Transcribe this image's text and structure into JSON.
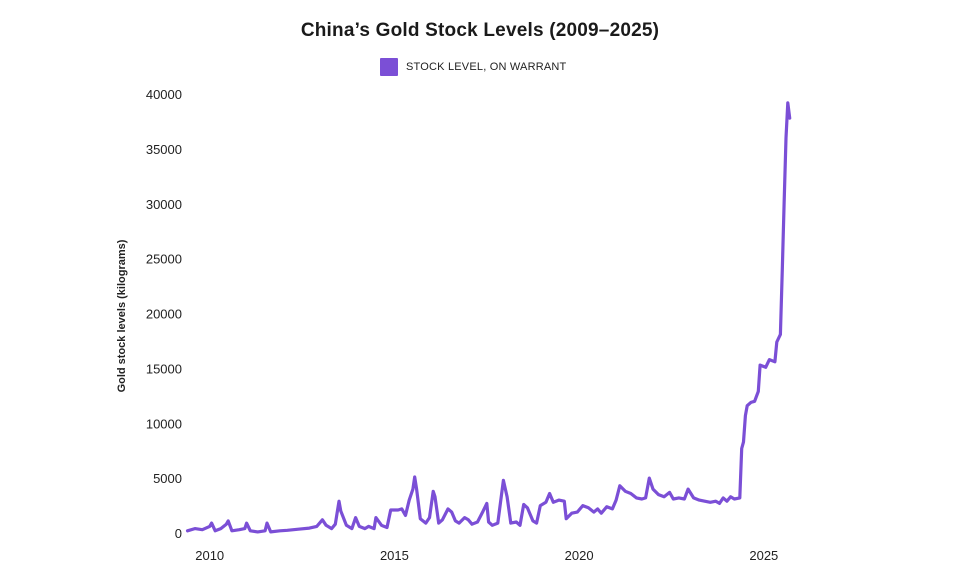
{
  "chart_data": {
    "type": "line",
    "title": "China’s Gold Stock Levels (2009–2025)",
    "xlabel": "",
    "ylabel": "Gold stock levels (kilograms)",
    "xlim": [
      2009.25,
      2026.25
    ],
    "ylim": [
      0,
      40000
    ],
    "x_ticks": [
      2010,
      2015,
      2020,
      2025
    ],
    "y_ticks": [
      0,
      5000,
      10000,
      15000,
      20000,
      25000,
      30000,
      35000,
      40000
    ],
    "grid": false,
    "legend_position": "top-center",
    "series": [
      {
        "name": "STOCK LEVEL, ON WARRANT",
        "color": "#7b4fd6",
        "points": [
          [
            2009.4,
            200
          ],
          [
            2009.6,
            400
          ],
          [
            2009.8,
            300
          ],
          [
            2010.0,
            600
          ],
          [
            2010.05,
            900
          ],
          [
            2010.15,
            200
          ],
          [
            2010.3,
            400
          ],
          [
            2010.45,
            800
          ],
          [
            2010.5,
            1100
          ],
          [
            2010.6,
            200
          ],
          [
            2010.8,
            300
          ],
          [
            2010.95,
            400
          ],
          [
            2011.0,
            900
          ],
          [
            2011.1,
            200
          ],
          [
            2011.3,
            100
          ],
          [
            2011.5,
            200
          ],
          [
            2011.55,
            900
          ],
          [
            2011.65,
            100
          ],
          [
            2011.9,
            200
          ],
          [
            2012.1,
            250
          ],
          [
            2012.4,
            350
          ],
          [
            2012.7,
            450
          ],
          [
            2012.9,
            600
          ],
          [
            2013.05,
            1200
          ],
          [
            2013.15,
            700
          ],
          [
            2013.3,
            400
          ],
          [
            2013.4,
            800
          ],
          [
            2013.5,
            2900
          ],
          [
            2013.55,
            2000
          ],
          [
            2013.7,
            700
          ],
          [
            2013.85,
            400
          ],
          [
            2013.95,
            1400
          ],
          [
            2014.05,
            600
          ],
          [
            2014.2,
            400
          ],
          [
            2014.3,
            600
          ],
          [
            2014.45,
            400
          ],
          [
            2014.5,
            1400
          ],
          [
            2014.65,
            700
          ],
          [
            2014.8,
            500
          ],
          [
            2014.9,
            2100
          ],
          [
            2015.1,
            2100
          ],
          [
            2015.2,
            2200
          ],
          [
            2015.3,
            1600
          ],
          [
            2015.4,
            3000
          ],
          [
            2015.5,
            4000
          ],
          [
            2015.55,
            5100
          ],
          [
            2015.6,
            4000
          ],
          [
            2015.7,
            1300
          ],
          [
            2015.85,
            900
          ],
          [
            2015.95,
            1400
          ],
          [
            2016.05,
            3800
          ],
          [
            2016.1,
            3300
          ],
          [
            2016.2,
            900
          ],
          [
            2016.3,
            1200
          ],
          [
            2016.45,
            2200
          ],
          [
            2016.55,
            1900
          ],
          [
            2016.65,
            1100
          ],
          [
            2016.75,
            900
          ],
          [
            2016.9,
            1400
          ],
          [
            2017.0,
            1200
          ],
          [
            2017.1,
            800
          ],
          [
            2017.25,
            1000
          ],
          [
            2017.4,
            2000
          ],
          [
            2017.5,
            2700
          ],
          [
            2017.55,
            1000
          ],
          [
            2017.65,
            700
          ],
          [
            2017.8,
            900
          ],
          [
            2017.95,
            4800
          ],
          [
            2018.05,
            3300
          ],
          [
            2018.15,
            900
          ],
          [
            2018.3,
            1000
          ],
          [
            2018.4,
            700
          ],
          [
            2018.5,
            2600
          ],
          [
            2018.6,
            2300
          ],
          [
            2018.75,
            1100
          ],
          [
            2018.85,
            900
          ],
          [
            2018.95,
            2500
          ],
          [
            2019.1,
            2800
          ],
          [
            2019.2,
            3600
          ],
          [
            2019.3,
            2800
          ],
          [
            2019.45,
            3000
          ],
          [
            2019.6,
            2900
          ],
          [
            2019.65,
            1300
          ],
          [
            2019.8,
            1800
          ],
          [
            2019.95,
            1900
          ],
          [
            2020.1,
            2500
          ],
          [
            2020.25,
            2300
          ],
          [
            2020.4,
            1900
          ],
          [
            2020.5,
            2200
          ],
          [
            2020.6,
            1800
          ],
          [
            2020.75,
            2400
          ],
          [
            2020.9,
            2200
          ],
          [
            2021.0,
            3000
          ],
          [
            2021.1,
            4300
          ],
          [
            2021.25,
            3800
          ],
          [
            2021.4,
            3600
          ],
          [
            2021.55,
            3200
          ],
          [
            2021.7,
            3100
          ],
          [
            2021.8,
            3200
          ],
          [
            2021.9,
            5000
          ],
          [
            2022.0,
            4000
          ],
          [
            2022.15,
            3500
          ],
          [
            2022.3,
            3300
          ],
          [
            2022.45,
            3700
          ],
          [
            2022.55,
            3100
          ],
          [
            2022.7,
            3200
          ],
          [
            2022.85,
            3100
          ],
          [
            2022.95,
            4000
          ],
          [
            2023.1,
            3200
          ],
          [
            2023.25,
            3000
          ],
          [
            2023.4,
            2900
          ],
          [
            2023.55,
            2800
          ],
          [
            2023.7,
            2900
          ],
          [
            2023.8,
            2700
          ],
          [
            2023.9,
            3200
          ],
          [
            2024.0,
            2900
          ],
          [
            2024.1,
            3300
          ],
          [
            2024.2,
            3100
          ],
          [
            2024.35,
            3200
          ],
          [
            2024.4,
            7700
          ],
          [
            2024.45,
            8300
          ],
          [
            2024.5,
            10700
          ],
          [
            2024.55,
            11600
          ],
          [
            2024.65,
            11900
          ],
          [
            2024.75,
            12000
          ],
          [
            2024.85,
            12900
          ],
          [
            2024.9,
            15300
          ],
          [
            2025.05,
            15100
          ],
          [
            2025.15,
            15800
          ],
          [
            2025.3,
            15600
          ],
          [
            2025.35,
            17400
          ],
          [
            2025.45,
            18100
          ],
          [
            2025.5,
            24000
          ],
          [
            2025.55,
            30000
          ],
          [
            2025.6,
            36000
          ],
          [
            2025.65,
            39200
          ],
          [
            2025.7,
            37800
          ]
        ]
      }
    ]
  }
}
